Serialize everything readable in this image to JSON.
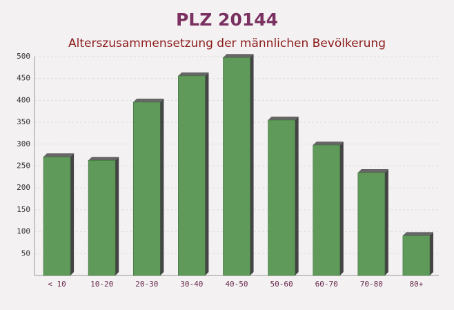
{
  "chart_data": {
    "type": "bar",
    "title": "PLZ 20144",
    "subtitle": "Alterszusammensetzung der männlichen Bevölkerung",
    "categories": [
      "< 10",
      "10-20",
      "20-30",
      "30-40",
      "40-50",
      "50-60",
      "60-70",
      "70-80",
      "80+"
    ],
    "values": [
      271,
      263,
      396,
      456,
      498,
      355,
      298,
      235,
      91
    ],
    "color": "#5f9a5a",
    "ylim": [
      0,
      500
    ],
    "yticks": [
      50,
      100,
      150,
      200,
      250,
      300,
      350,
      400,
      450,
      500
    ],
    "grid": true
  }
}
